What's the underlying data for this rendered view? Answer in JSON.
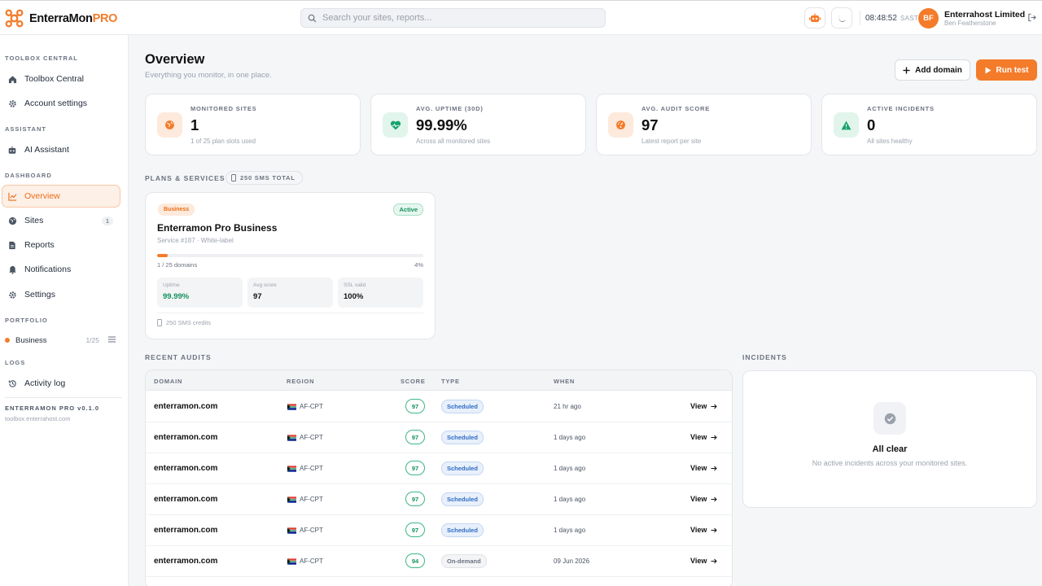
{
  "brand": {
    "name": "EnterraMon",
    "suffix": "PRO",
    "color": "#f47b2a"
  },
  "search": {
    "placeholder": "Search your sites, reports..."
  },
  "header": {
    "time": "08:48:52",
    "timezone": "SAST",
    "avatar_initials": "BF",
    "company": "Enterrahost Limited",
    "user": "Ben Featherstone"
  },
  "sidebar": {
    "sections": [
      {
        "label": "TOOLBOX CENTRAL"
      },
      {
        "label": "ASSISTANT"
      },
      {
        "label": "DASHBOARD"
      },
      {
        "label": "PORTFOLIO"
      },
      {
        "label": "LOGS"
      }
    ],
    "items": [
      {
        "label": "Toolbox Central",
        "icon": "home-icon"
      },
      {
        "label": "Account settings",
        "icon": "gear-icon"
      },
      {
        "label": "AI Assistant",
        "icon": "robot-icon"
      },
      {
        "label": "Overview",
        "icon": "chart-line-icon",
        "active": true
      },
      {
        "label": "Sites",
        "icon": "globe-icon",
        "count": "1"
      },
      {
        "label": "Reports",
        "icon": "document-icon"
      },
      {
        "label": "Notifications",
        "icon": "bell-icon"
      },
      {
        "label": "Settings",
        "icon": "gear-icon"
      },
      {
        "label": "Activity log",
        "icon": "history-icon"
      }
    ],
    "portfolio": {
      "label": "Business",
      "ratio": "1/25"
    },
    "version": "ENTERRAMON PRO v0.1.0",
    "domain": "toolbox.enterrahost.com"
  },
  "main": {
    "title": "Overview",
    "subtitle": "Everything you monitor, in one place.",
    "add_domain": "Add domain",
    "run_test": "Run test"
  },
  "stats": [
    {
      "label": "MONITORED SITES",
      "value": "1",
      "caption": "1 of 25 plan slots used",
      "icon": "globe-icon",
      "color": "#f47b2a"
    },
    {
      "label": "AVG. UPTIME (30D)",
      "value": "99.99%",
      "caption": "Across all monitored sites",
      "icon": "heartbeat-icon",
      "color": "#16a36b"
    },
    {
      "label": "AVG. AUDIT SCORE",
      "value": "97",
      "caption": "Latest report per site",
      "icon": "gauge-icon",
      "color": "#f47b2a"
    },
    {
      "label": "ACTIVE INCIDENTS",
      "value": "0",
      "caption": "All sites healthy",
      "icon": "warning-icon",
      "color": "#16a36b"
    }
  ],
  "plans": {
    "section": "PLANS & SERVICES",
    "sms_total": "250 SMS TOTAL",
    "card": {
      "tag": "Business",
      "status": "Active",
      "name": "Enterramon Pro Business",
      "service": "Service #187 · White-label",
      "usage_label": "1 / 25 domains",
      "usage_percent": "4%",
      "usage_fraction": 0.04,
      "metrics": [
        {
          "label": "Uptime",
          "value": "99.99%"
        },
        {
          "label": "Avg score",
          "value": "97"
        },
        {
          "label": "SSL valid",
          "value": "100%"
        }
      ],
      "sms_credits": "250 SMS credits"
    }
  },
  "audits": {
    "section": "RECENT AUDITS",
    "columns": [
      "DOMAIN",
      "REGION",
      "SCORE",
      "TYPE",
      "WHEN"
    ],
    "rows": [
      {
        "domain": "enterramon.com",
        "region": "AF-CPT",
        "score": "97",
        "type": "Scheduled",
        "when": "21 hr ago",
        "action": "View"
      },
      {
        "domain": "enterramon.com",
        "region": "AF-CPT",
        "score": "97",
        "type": "Scheduled",
        "when": "1 days ago",
        "action": "View"
      },
      {
        "domain": "enterramon.com",
        "region": "AF-CPT",
        "score": "97",
        "type": "Scheduled",
        "when": "1 days ago",
        "action": "View"
      },
      {
        "domain": "enterramon.com",
        "region": "AF-CPT",
        "score": "97",
        "type": "Scheduled",
        "when": "1 days ago",
        "action": "View"
      },
      {
        "domain": "enterramon.com",
        "region": "AF-CPT",
        "score": "97",
        "type": "Scheduled",
        "when": "1 days ago",
        "action": "View"
      },
      {
        "domain": "enterramon.com",
        "region": "AF-CPT",
        "score": "94",
        "type": "On-demand",
        "when": "09 Jun 2026",
        "action": "View"
      }
    ]
  },
  "incidents": {
    "section": "INCIDENTS",
    "title": "All clear",
    "subtitle": "No active incidents across your monitored sites."
  }
}
